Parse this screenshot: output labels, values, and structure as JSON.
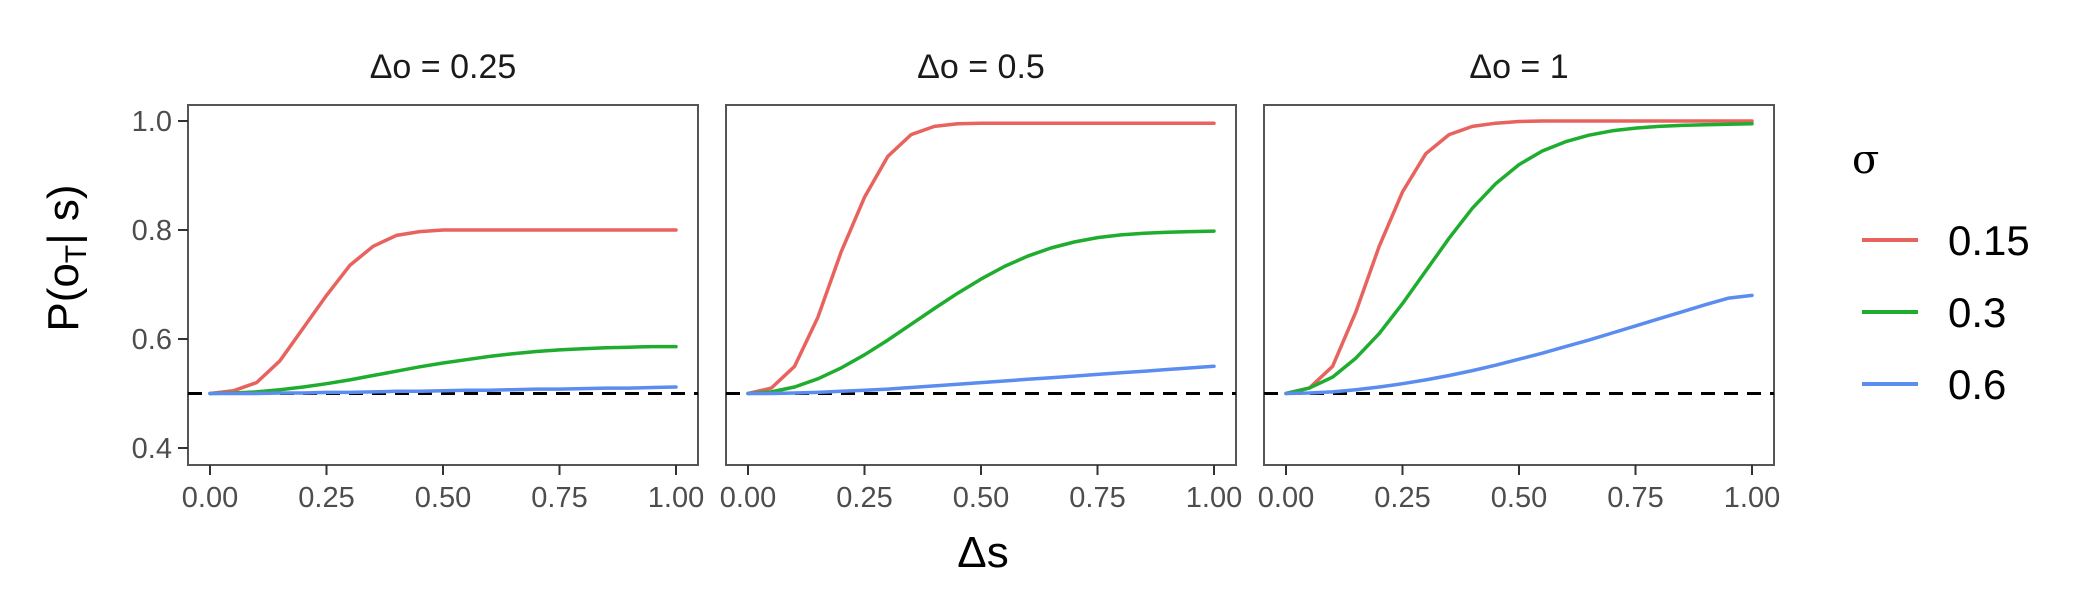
{
  "chart_data": {
    "type": "line",
    "facet_label_prefix": "Δo = ",
    "xlabel": "Δs",
    "ylabel": "P(o",
    "ylabel_sub": "T",
    "ylabel_suffix": "| s)",
    "xlim": [
      0,
      1
    ],
    "ylim": [
      0.4,
      1.0
    ],
    "xticks": [
      0,
      0.25,
      0.5,
      0.75,
      1
    ],
    "xtick_labels": [
      "0.00",
      "0.25",
      "0.50",
      "0.75",
      "1.00"
    ],
    "yticks": [
      0.4,
      0.6,
      0.8,
      1.0
    ],
    "ytick_labels": [
      "0.4",
      "0.6",
      "0.8",
      "1.0"
    ],
    "grid": false,
    "reference_line": {
      "y": 0.5,
      "style": "dashed",
      "color": "#000000"
    },
    "legend": {
      "title": "σ",
      "placement": "right",
      "entries": [
        "0.15",
        "0.3",
        "0.6"
      ],
      "colors": [
        "#E8625E",
        "#1EAD2E",
        "#5B8DF0"
      ]
    },
    "x": [
      0,
      0.05,
      0.1,
      0.15,
      0.2,
      0.25,
      0.3,
      0.35,
      0.4,
      0.45,
      0.5,
      0.55,
      0.6,
      0.65,
      0.7,
      0.75,
      0.8,
      0.85,
      0.9,
      0.95,
      1.0
    ],
    "facets": [
      {
        "delta_o": "0.25",
        "series": [
          {
            "sigma": "0.15",
            "values": [
              0.5,
              0.505,
              0.52,
              0.56,
              0.62,
              0.68,
              0.735,
              0.77,
              0.79,
              0.797,
              0.8,
              0.8,
              0.8,
              0.8,
              0.8,
              0.8,
              0.8,
              0.8,
              0.8,
              0.8,
              0.8
            ]
          },
          {
            "sigma": "0.3",
            "values": [
              0.5,
              0.501,
              0.503,
              0.507,
              0.512,
              0.518,
              0.525,
              0.533,
              0.541,
              0.549,
              0.556,
              0.562,
              0.568,
              0.573,
              0.577,
              0.58,
              0.582,
              0.584,
              0.585,
              0.586,
              0.586
            ]
          },
          {
            "sigma": "0.6",
            "values": [
              0.5,
              0.5,
              0.5,
              0.501,
              0.501,
              0.502,
              0.502,
              0.503,
              0.504,
              0.504,
              0.505,
              0.506,
              0.506,
              0.507,
              0.508,
              0.508,
              0.509,
              0.51,
              0.51,
              0.511,
              0.512
            ]
          }
        ]
      },
      {
        "delta_o": "0.5",
        "series": [
          {
            "sigma": "0.15",
            "values": [
              0.5,
              0.51,
              0.55,
              0.64,
              0.76,
              0.86,
              0.935,
              0.975,
              0.99,
              0.995,
              0.996,
              0.996,
              0.996,
              0.996,
              0.996,
              0.996,
              0.996,
              0.996,
              0.996,
              0.996,
              0.996
            ]
          },
          {
            "sigma": "0.3",
            "values": [
              0.5,
              0.503,
              0.512,
              0.527,
              0.547,
              0.571,
              0.598,
              0.627,
              0.656,
              0.684,
              0.71,
              0.733,
              0.752,
              0.767,
              0.778,
              0.786,
              0.791,
              0.794,
              0.796,
              0.797,
              0.798
            ]
          },
          {
            "sigma": "0.6",
            "values": [
              0.5,
              0.5,
              0.501,
              0.502,
              0.504,
              0.506,
              0.508,
              0.511,
              0.514,
              0.517,
              0.52,
              0.523,
              0.526,
              0.529,
              0.532,
              0.535,
              0.538,
              0.541,
              0.544,
              0.547,
              0.55
            ]
          }
        ]
      },
      {
        "delta_o": "1",
        "series": [
          {
            "sigma": "0.15",
            "values": [
              0.5,
              0.51,
              0.55,
              0.65,
              0.77,
              0.87,
              0.94,
              0.975,
              0.99,
              0.996,
              0.999,
              1.0,
              1.0,
              1.0,
              1.0,
              1.0,
              1.0,
              1.0,
              1.0,
              1.0,
              1.0
            ]
          },
          {
            "sigma": "0.3",
            "values": [
              0.5,
              0.51,
              0.53,
              0.565,
              0.61,
              0.665,
              0.725,
              0.785,
              0.84,
              0.885,
              0.92,
              0.945,
              0.962,
              0.974,
              0.982,
              0.987,
              0.99,
              0.992,
              0.993,
              0.994,
              0.995
            ]
          },
          {
            "sigma": "0.6",
            "values": [
              0.5,
              0.501,
              0.503,
              0.507,
              0.512,
              0.518,
              0.525,
              0.533,
              0.542,
              0.552,
              0.563,
              0.574,
              0.586,
              0.598,
              0.611,
              0.624,
              0.637,
              0.65,
              0.663,
              0.675,
              0.68
            ]
          }
        ]
      }
    ]
  }
}
